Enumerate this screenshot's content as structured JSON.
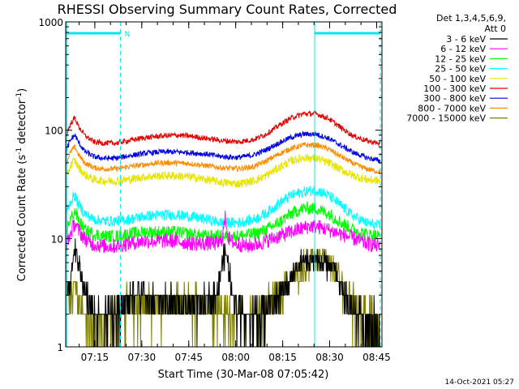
{
  "chart_data": {
    "type": "line",
    "title": "RHESSI Observing Summary Count Rates, Corrected",
    "xlabel": "Start Time (30-Mar-08 07:05:42)",
    "ylabel_main": "Corrected Count Rate (s",
    "ylabel_sup1": "-1",
    "ylabel_mid": " detector",
    "ylabel_sup2": "-1",
    "ylabel_end": ")",
    "yscale": "log",
    "ylim": [
      1,
      1000
    ],
    "xlim_minutes": [
      0,
      101
    ],
    "x_ticks": [
      {
        "label": "07:15",
        "minute": 9.3
      },
      {
        "label": "07:30",
        "minute": 24.3
      },
      {
        "label": "07:45",
        "minute": 39.3
      },
      {
        "label": "08:00",
        "minute": 54.3
      },
      {
        "label": "08:15",
        "minute": 69.3
      },
      {
        "label": "08:30",
        "minute": 84.3
      },
      {
        "label": "08:45",
        "minute": 99.3
      }
    ],
    "y_ticks": [
      {
        "label": "1",
        "value": 1
      },
      {
        "label": "10",
        "value": 10
      },
      {
        "label": "100",
        "value": 100
      },
      {
        "label": "1000",
        "value": 1000
      }
    ],
    "night_marker": "N",
    "night_bars": [
      [
        0.3,
        17.5
      ],
      [
        79.5,
        100.5
      ]
    ],
    "dashed_verticals": [
      17.5,
      100.5
    ],
    "solid_verticals": [
      0.3,
      79.5
    ],
    "legend_header_line1": "Det 1,3,4,5,6,9,",
    "legend_header_line2": "Att 0",
    "series": [
      {
        "name": "3 - 6 keV",
        "color": "#000000",
        "points": [
          [
            0.3,
            4
          ],
          [
            1,
            3.5
          ],
          [
            2,
            5
          ],
          [
            3,
            8
          ],
          [
            4,
            6
          ],
          [
            5,
            4
          ],
          [
            6,
            3.5
          ],
          [
            7,
            3
          ],
          [
            9,
            2
          ],
          [
            12,
            1.8
          ],
          [
            16,
            2
          ],
          [
            20,
            3
          ],
          [
            25,
            3
          ],
          [
            30,
            2.5
          ],
          [
            35,
            2.5
          ],
          [
            40,
            2.5
          ],
          [
            45,
            2.5
          ],
          [
            48,
            3
          ],
          [
            50,
            6
          ],
          [
            51,
            7.5
          ],
          [
            52,
            5
          ],
          [
            54,
            2.5
          ],
          [
            58,
            2
          ],
          [
            62,
            2
          ],
          [
            66,
            2.5
          ],
          [
            70,
            3.5
          ],
          [
            73,
            5
          ],
          [
            76,
            6
          ],
          [
            80,
            6.5
          ],
          [
            83,
            6
          ],
          [
            86,
            5
          ],
          [
            89,
            3
          ],
          [
            92,
            2
          ],
          [
            96,
            1.8
          ],
          [
            100.5,
            1.5
          ]
        ]
      },
      {
        "name": "6 - 12 keV",
        "color": "#ff00ff",
        "points": [
          [
            0.3,
            9
          ],
          [
            1,
            10
          ],
          [
            2,
            12
          ],
          [
            3,
            14
          ],
          [
            4,
            12
          ],
          [
            6,
            10
          ],
          [
            8,
            9
          ],
          [
            12,
            8.5
          ],
          [
            16,
            8.5
          ],
          [
            20,
            9
          ],
          [
            25,
            9.5
          ],
          [
            30,
            9.5
          ],
          [
            35,
            9.5
          ],
          [
            40,
            9
          ],
          [
            45,
            9
          ],
          [
            49,
            9
          ],
          [
            50,
            10
          ],
          [
            51,
            16
          ],
          [
            52,
            10
          ],
          [
            54,
            9
          ],
          [
            58,
            8.5
          ],
          [
            62,
            9
          ],
          [
            66,
            10
          ],
          [
            70,
            11
          ],
          [
            74,
            12
          ],
          [
            78,
            13
          ],
          [
            80,
            13
          ],
          [
            84,
            12
          ],
          [
            88,
            11
          ],
          [
            92,
            10
          ],
          [
            96,
            9
          ],
          [
            100.5,
            8.5
          ]
        ]
      },
      {
        "name": "12 - 25 keV",
        "color": "#00ff00",
        "points": [
          [
            0.3,
            12
          ],
          [
            1,
            14
          ],
          [
            2,
            16
          ],
          [
            3,
            18
          ],
          [
            4,
            15
          ],
          [
            6,
            12
          ],
          [
            9,
            11
          ],
          [
            12,
            10.5
          ],
          [
            16,
            10.5
          ],
          [
            20,
            11
          ],
          [
            25,
            11.5
          ],
          [
            30,
            11.5
          ],
          [
            35,
            11.5
          ],
          [
            40,
            11
          ],
          [
            45,
            10.5
          ],
          [
            50,
            10.5
          ],
          [
            55,
            10.5
          ],
          [
            60,
            11
          ],
          [
            64,
            12
          ],
          [
            68,
            14
          ],
          [
            72,
            17
          ],
          [
            76,
            19
          ],
          [
            80,
            19
          ],
          [
            84,
            17
          ],
          [
            88,
            14
          ],
          [
            92,
            12
          ],
          [
            96,
            11
          ],
          [
            100.5,
            10.5
          ]
        ]
      },
      {
        "name": "25 - 50 keV",
        "color": "#00ffff",
        "points": [
          [
            0.3,
            17
          ],
          [
            1,
            20
          ],
          [
            2,
            23
          ],
          [
            3,
            25
          ],
          [
            4,
            21
          ],
          [
            6,
            17
          ],
          [
            9,
            15
          ],
          [
            12,
            14.5
          ],
          [
            16,
            14.5
          ],
          [
            20,
            15
          ],
          [
            25,
            16
          ],
          [
            30,
            16.5
          ],
          [
            35,
            16.5
          ],
          [
            40,
            16
          ],
          [
            45,
            15
          ],
          [
            50,
            14
          ],
          [
            55,
            14
          ],
          [
            60,
            15
          ],
          [
            64,
            17
          ],
          [
            68,
            21
          ],
          [
            72,
            25
          ],
          [
            76,
            27
          ],
          [
            80,
            28
          ],
          [
            84,
            25
          ],
          [
            88,
            20
          ],
          [
            92,
            16
          ],
          [
            96,
            14
          ],
          [
            100.5,
            13
          ]
        ]
      },
      {
        "name": "50 - 100 keV",
        "color": "#e6e600",
        "points": [
          [
            0.3,
            38
          ],
          [
            1,
            43
          ],
          [
            2,
            50
          ],
          [
            3,
            52
          ],
          [
            4,
            46
          ],
          [
            6,
            39
          ],
          [
            9,
            35
          ],
          [
            12,
            34
          ],
          [
            16,
            34
          ],
          [
            20,
            35
          ],
          [
            25,
            37
          ],
          [
            30,
            38
          ],
          [
            35,
            38
          ],
          [
            40,
            37
          ],
          [
            45,
            35
          ],
          [
            50,
            33
          ],
          [
            55,
            32
          ],
          [
            60,
            34
          ],
          [
            64,
            38
          ],
          [
            68,
            45
          ],
          [
            72,
            52
          ],
          [
            76,
            56
          ],
          [
            80,
            55
          ],
          [
            84,
            50
          ],
          [
            88,
            43
          ],
          [
            92,
            38
          ],
          [
            96,
            35
          ],
          [
            100.5,
            34
          ]
        ]
      },
      {
        "name": "100 - 300 keV",
        "color": "#e60000",
        "points": [
          [
            0.3,
            90
          ],
          [
            1,
            105
          ],
          [
            2,
            120
          ],
          [
            3,
            130
          ],
          [
            4,
            110
          ],
          [
            6,
            90
          ],
          [
            9,
            78
          ],
          [
            12,
            76
          ],
          [
            16,
            76
          ],
          [
            20,
            80
          ],
          [
            25,
            85
          ],
          [
            30,
            88
          ],
          [
            35,
            90
          ],
          [
            40,
            88
          ],
          [
            45,
            84
          ],
          [
            50,
            80
          ],
          [
            55,
            78
          ],
          [
            60,
            82
          ],
          [
            64,
            92
          ],
          [
            68,
            110
          ],
          [
            72,
            130
          ],
          [
            76,
            142
          ],
          [
            80,
            142
          ],
          [
            84,
            128
          ],
          [
            88,
            105
          ],
          [
            92,
            88
          ],
          [
            96,
            80
          ],
          [
            100.5,
            75
          ]
        ]
      },
      {
        "name": "300 - 800 keV",
        "color": "#0000e6",
        "points": [
          [
            0.3,
            65
          ],
          [
            1,
            75
          ],
          [
            2,
            85
          ],
          [
            3,
            90
          ],
          [
            4,
            78
          ],
          [
            6,
            64
          ],
          [
            9,
            57
          ],
          [
            12,
            55
          ],
          [
            16,
            55
          ],
          [
            20,
            58
          ],
          [
            25,
            61
          ],
          [
            30,
            63
          ],
          [
            35,
            63
          ],
          [
            40,
            62
          ],
          [
            45,
            60
          ],
          [
            50,
            57
          ],
          [
            55,
            56
          ],
          [
            60,
            59
          ],
          [
            64,
            66
          ],
          [
            68,
            76
          ],
          [
            72,
            86
          ],
          [
            76,
            92
          ],
          [
            80,
            92
          ],
          [
            84,
            84
          ],
          [
            88,
            72
          ],
          [
            92,
            62
          ],
          [
            96,
            56
          ],
          [
            100.5,
            52
          ]
        ]
      },
      {
        "name": "800 - 7000 keV",
        "color": "#ff8c00",
        "points": [
          [
            0.3,
            50
          ],
          [
            1,
            58
          ],
          [
            2,
            66
          ],
          [
            3,
            70
          ],
          [
            4,
            60
          ],
          [
            6,
            50
          ],
          [
            9,
            45
          ],
          [
            12,
            44
          ],
          [
            16,
            44
          ],
          [
            20,
            46
          ],
          [
            25,
            48
          ],
          [
            30,
            50
          ],
          [
            35,
            50
          ],
          [
            40,
            49
          ],
          [
            45,
            47
          ],
          [
            50,
            45
          ],
          [
            55,
            44
          ],
          [
            60,
            46
          ],
          [
            64,
            52
          ],
          [
            68,
            60
          ],
          [
            72,
            68
          ],
          [
            76,
            73
          ],
          [
            80,
            73
          ],
          [
            84,
            67
          ],
          [
            88,
            57
          ],
          [
            92,
            49
          ],
          [
            96,
            44
          ],
          [
            100.5,
            41
          ]
        ]
      },
      {
        "name": "7000 - 15000 keV",
        "color": "#808000",
        "points": [
          [
            0.3,
            3
          ],
          [
            1,
            2.5
          ],
          [
            2,
            3
          ],
          [
            3,
            4
          ],
          [
            4,
            3
          ],
          [
            5,
            2
          ],
          [
            6,
            1.8
          ],
          [
            8,
            1.5
          ],
          [
            12,
            1.5
          ],
          [
            16,
            2
          ],
          [
            20,
            2.5
          ],
          [
            25,
            2.5
          ],
          [
            30,
            2.5
          ],
          [
            35,
            2.5
          ],
          [
            40,
            2.5
          ],
          [
            45,
            2.5
          ],
          [
            50,
            2.2
          ],
          [
            54,
            2
          ],
          [
            58,
            2
          ],
          [
            62,
            2
          ],
          [
            66,
            2.5
          ],
          [
            70,
            3.5
          ],
          [
            73,
            4.5
          ],
          [
            76,
            5.5
          ],
          [
            80,
            6.5
          ],
          [
            83,
            6
          ],
          [
            86,
            5
          ],
          [
            89,
            3.5
          ],
          [
            92,
            2.5
          ],
          [
            96,
            1.8
          ],
          [
            100.5,
            1.5
          ]
        ]
      }
    ]
  },
  "footer_timestamp": "14-Oct-2021 05:27"
}
